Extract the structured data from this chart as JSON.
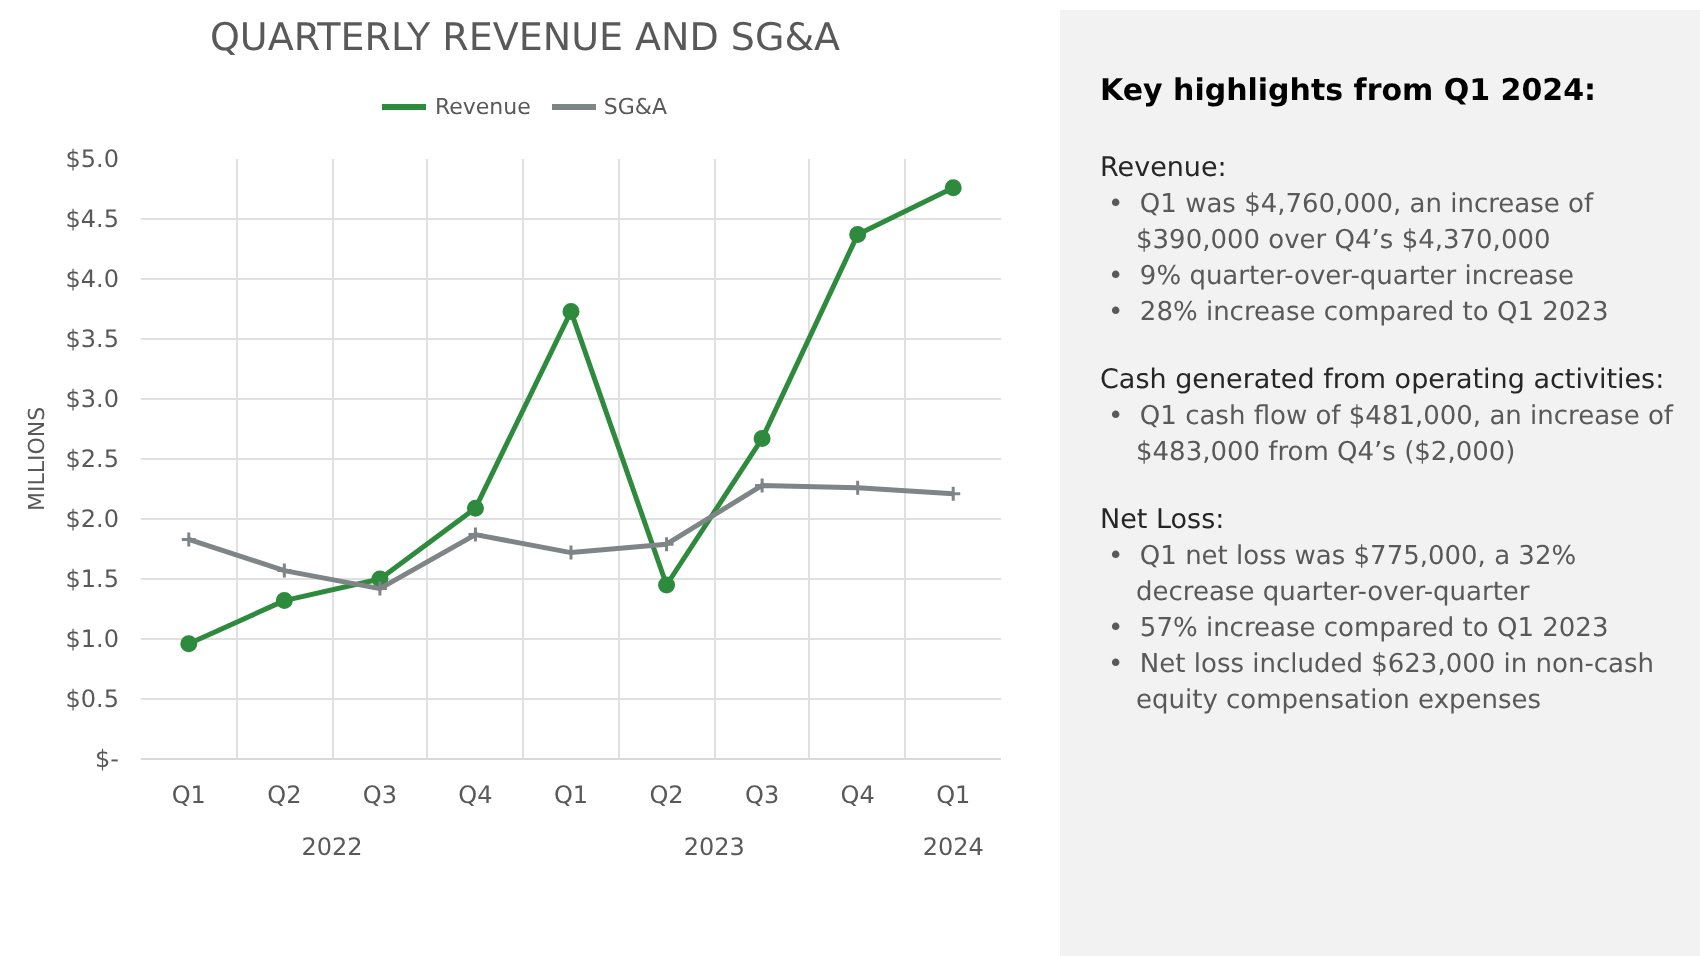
{
  "chart_data": [
    {
      "type": "line",
      "title": "QUARTERLY REVENUE AND SG&A",
      "ylabel": "MILLIONS",
      "categories": [
        "Q1",
        "Q2",
        "Q3",
        "Q4",
        "Q1",
        "Q2",
        "Q3",
        "Q4",
        "Q1"
      ],
      "annotations": [
        "2022",
        "2023",
        "2024"
      ],
      "series": [
        {
          "name": "Revenue",
          "color": "#2e8b3e",
          "marker": "circle",
          "values": [
            0.96,
            1.32,
            1.5,
            2.09,
            3.73,
            1.45,
            2.67,
            4.37,
            4.76
          ]
        },
        {
          "name": "SG&A",
          "color": "#7f8587",
          "marker": "cross",
          "values": [
            1.83,
            1.57,
            1.42,
            1.87,
            1.72,
            1.79,
            2.28,
            2.26,
            2.21
          ]
        }
      ],
      "ylim": [
        0,
        5
      ],
      "yticks": [
        {
          "value": 0,
          "label": "$-"
        },
        {
          "value": 0.5,
          "label": "$0.5"
        },
        {
          "value": 1,
          "label": "$1.0"
        },
        {
          "value": 1.5,
          "label": "$1.5"
        },
        {
          "value": 2,
          "label": "$2.0"
        },
        {
          "value": 2.5,
          "label": "$2.5"
        },
        {
          "value": 3,
          "label": "$3.0"
        },
        {
          "value": 3.5,
          "label": "$3.5"
        },
        {
          "value": 4,
          "label": "$4.0"
        },
        {
          "value": 4.5,
          "label": "$4.5"
        },
        {
          "value": 5,
          "label": "$5.0"
        }
      ],
      "grid": true,
      "legend": "top",
      "line_style": "solid"
    },
    {
      "type": "other",
      "title": "Key highlights from Q1 2024:",
      "annotations": [
        "Revenue:",
        "• Q1 was $4,760,000, an increase of $390,000 over Q4’s $4,370,000",
        "• 9% quarter-over-quarter increase",
        "• 28% increase compared to Q1 2023",
        "Cash generated from operating activities:",
        "• Q1 cash flow of $481,000, an increase of $483,000 from Q4’s ($2,000)",
        "Net Loss:",
        "• Q1 net loss was $775,000, a 32% decrease quarter-over-quarter",
        "• 57% increase compared to Q1 2023",
        "• Net loss included $623,000 in non-cash equity compensation expenses"
      ]
    }
  ]
}
